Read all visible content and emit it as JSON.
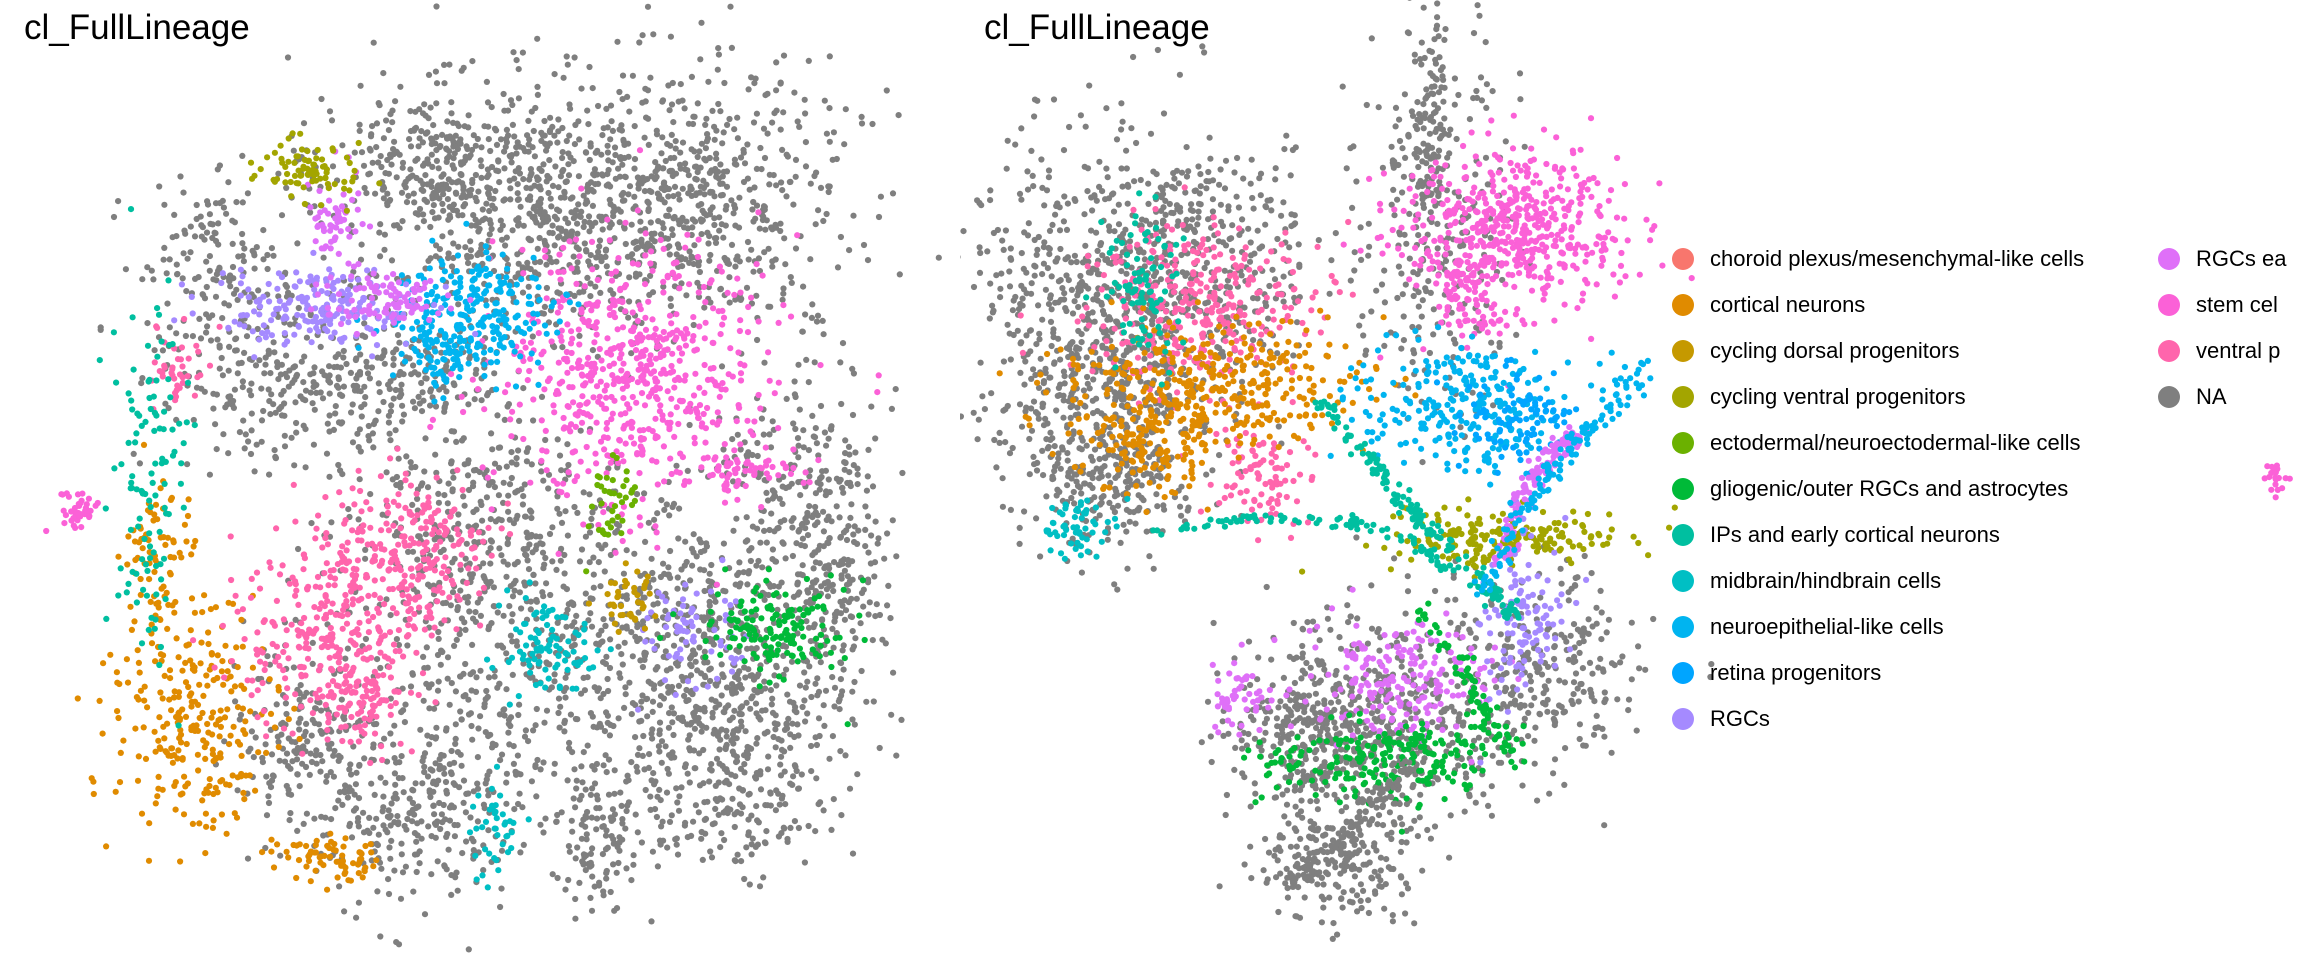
{
  "chart_data": [
    {
      "type": "scatter",
      "title": "cl_FullLineage",
      "xlabel": "",
      "ylabel": "",
      "axes": "hidden",
      "grid": false,
      "legend_placement": "none"
    },
    {
      "type": "scatter",
      "title": "cl_FullLineage",
      "xlabel": "",
      "ylabel": "",
      "axes": "hidden",
      "grid": false,
      "legend_placement": "right",
      "legend": [
        {
          "label": "choroid plexus/mesenchymal-like cells",
          "color": "#F8766D"
        },
        {
          "label": "cortical neurons",
          "color": "#E08B00"
        },
        {
          "label": "cycling dorsal progenitors",
          "color": "#C59900"
        },
        {
          "label": "cycling ventral progenitors",
          "color": "#A3A500"
        },
        {
          "label": "ectodermal/neuroectodermal-like cells",
          "color": "#6BB100"
        },
        {
          "label": "gliogenic/outer RGCs and astrocytes",
          "color": "#00BA38"
        },
        {
          "label": "IPs and early cortical neurons",
          "color": "#00BFA0"
        },
        {
          "label": "midbrain/hindbrain cells",
          "color": "#00BFC4"
        },
        {
          "label": "neuroepithelial-like cells",
          "color": "#00B4F0"
        },
        {
          "label": "retina progenitors",
          "color": "#00A5FF"
        },
        {
          "label": "RGCs",
          "color": "#A58AFF"
        },
        {
          "label": "RGCs ea",
          "color": "#DF70F8"
        },
        {
          "label": "stem cel",
          "color": "#FB61D7"
        },
        {
          "label": "ventral p",
          "color": "#FF65AC"
        },
        {
          "label": "NA",
          "color": "#7F7F7F"
        }
      ]
    }
  ]
}
